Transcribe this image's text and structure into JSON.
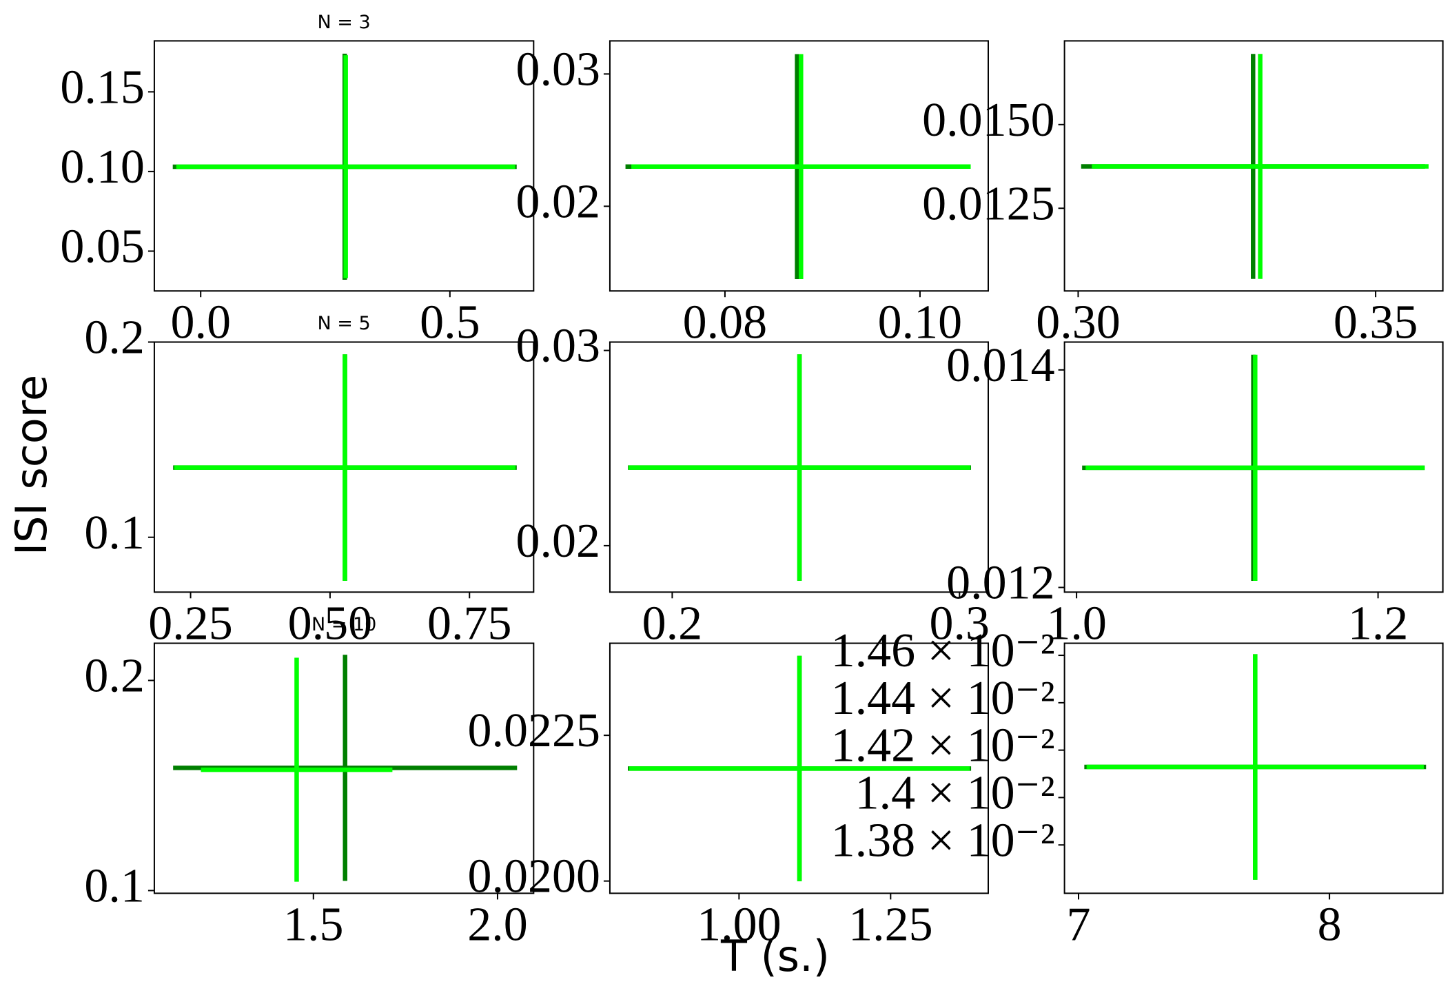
{
  "figure": {
    "xlabel": "T (s.)",
    "ylabel": "ISI score"
  },
  "chart_data": [
    {
      "type": "errorbar",
      "title": "N = 3",
      "xlim": [
        -0.093,
        0.668
      ],
      "ylim": [
        0.025,
        0.182
      ],
      "xticks": [
        {
          "value": 0,
          "label": "0.0"
        },
        0.5
      ],
      "yticks": [
        0.05,
        {
          "value": 0.1,
          "label": "0.10"
        },
        0.15
      ],
      "series": [
        {
          "color": "#007f00",
          "x": [
            0.289
          ],
          "values": [
            0.103
          ],
          "xerr": [
            0.345
          ],
          "yerr": [
            0.071
          ]
        },
        {
          "color": "#00ff00",
          "x": [
            0.291
          ],
          "values": [
            0.103
          ],
          "xerr": [
            0.34
          ],
          "yerr": [
            0.07
          ]
        }
      ]
    },
    {
      "type": "errorbar",
      "xlim": [
        0.0682,
        0.107
      ],
      "ylim": [
        0.0136,
        0.0325
      ],
      "xticks": [
        0.08,
        {
          "value": 0.1,
          "label": "0.10"
        }
      ],
      "yticks": [
        0.02,
        0.03
      ],
      "series": [
        {
          "color": "#007f00",
          "x": [
            0.0874
          ],
          "values": [
            0.023
          ],
          "xerr": [
            0.0176
          ],
          "yerr": [
            0.0085
          ]
        },
        {
          "color": "#00ff00",
          "x": [
            0.0878
          ],
          "values": [
            0.023
          ],
          "xerr": [
            0.0174
          ],
          "yerr": [
            0.0085
          ]
        }
      ]
    },
    {
      "type": "errorbar",
      "xlim": [
        0.2977,
        0.3613
      ],
      "ylim": [
        0.01003,
        0.0175
      ],
      "xticks": [
        {
          "value": 0.3,
          "label": "0.30"
        },
        0.35
      ],
      "yticks": [
        0.0125,
        {
          "value": 0.015,
          "label": "0.0150"
        }
      ],
      "series": [
        {
          "color": "#007f00",
          "x": [
            0.3294
          ],
          "values": [
            0.01375
          ],
          "xerr": [
            0.0289
          ],
          "yerr": [
            0.00336
          ]
        },
        {
          "color": "#00ff00",
          "x": [
            0.3306
          ],
          "values": [
            0.01375
          ],
          "xerr": [
            0.0283
          ],
          "yerr": [
            0.00336
          ]
        }
      ]
    },
    {
      "type": "errorbar",
      "title": "N = 5",
      "xlim": [
        0.185,
        0.865
      ],
      "ylim": [
        0.0719,
        0.2
      ],
      "xticks": [
        0.25,
        {
          "value": 0.5,
          "label": "0.50"
        },
        0.75
      ],
      "yticks": [
        0.1,
        0.2
      ],
      "series": [
        {
          "color": "#007f00",
          "x": [
            0.5267
          ],
          "values": [
            0.1357
          ],
          "xerr": [
            0.308
          ],
          "yerr": [
            0.058
          ]
        },
        {
          "color": "#00ff00",
          "x": [
            0.5267
          ],
          "values": [
            0.1357
          ],
          "xerr": [
            0.306
          ],
          "yerr": [
            0.058
          ]
        }
      ]
    },
    {
      "type": "errorbar",
      "xlim": [
        0.1783,
        0.31
      ],
      "ylim": [
        0.01762,
        0.03043
      ],
      "xticks": [
        0.2,
        0.3
      ],
      "yticks": [
        0.02,
        0.03
      ],
      "series": [
        {
          "color": "#007f00",
          "x": [
            0.2443
          ],
          "values": [
            0.024
          ],
          "xerr": [
            0.0597
          ],
          "yerr": [
            0.0058
          ]
        },
        {
          "color": "#00ff00",
          "x": [
            0.2443
          ],
          "values": [
            0.024
          ],
          "xerr": [
            0.0595
          ],
          "yerr": [
            0.0058
          ]
        }
      ]
    },
    {
      "type": "errorbar",
      "xlim": [
        0.992,
        1.243
      ],
      "ylim": [
        0.011957,
        0.014256
      ],
      "xticks": [
        {
          "value": 1,
          "label": "1.0"
        },
        1.2
      ],
      "yticks": [
        0.012,
        0.014
      ],
      "series": [
        {
          "color": "#007f00",
          "x": [
            1.1173
          ],
          "values": [
            0.0131
          ],
          "xerr": [
            0.1136
          ],
          "yerr": [
            0.00104
          ]
        },
        {
          "color": "#00ff00",
          "x": [
            1.1185
          ],
          "values": [
            0.0131
          ],
          "xerr": [
            0.1125
          ],
          "yerr": [
            0.00104
          ]
        }
      ]
    },
    {
      "type": "errorbar",
      "title": "N = 10",
      "xlim": [
        1.068,
        2.098
      ],
      "ylim": [
        0.0987,
        0.2177
      ],
      "xticks": [
        1.5,
        {
          "value": 2,
          "label": "2.0"
        }
      ],
      "yticks": [
        0.1,
        0.2
      ],
      "series": [
        {
          "color": "#007f00",
          "x": [
            1.586
          ],
          "values": [
            0.1584
          ],
          "xerr": [
            0.467
          ],
          "yerr": [
            0.0538
          ]
        },
        {
          "color": "#00ff00",
          "x": [
            1.4545
          ],
          "values": [
            0.1575
          ],
          "xerr": [
            0.26
          ],
          "yerr": [
            0.0533
          ]
        }
      ]
    },
    {
      "type": "errorbar",
      "xlim": [
        0.787,
        1.411
      ],
      "ylim": [
        0.01979,
        0.02408
      ],
      "xticks": [
        {
          "value": 1,
          "label": "1.00"
        },
        1.25
      ],
      "yticks": [
        {
          "value": 0.02,
          "label": "0.0200"
        },
        0.0225
      ],
      "series": [
        {
          "color": "#007f00",
          "x": [
            1.0997
          ],
          "values": [
            0.02193
          ],
          "xerr": [
            0.283
          ],
          "yerr": [
            0.001935
          ]
        },
        {
          "color": "#00ff00",
          "x": [
            1.0997
          ],
          "values": [
            0.02193
          ],
          "xerr": [
            0.281
          ],
          "yerr": [
            0.001935
          ]
        }
      ]
    },
    {
      "type": "errorbar",
      "xlim": [
        6.944,
        8.452
      ],
      "ylim": [
        0.013596,
        0.014651
      ],
      "xticks": [
        7,
        8
      ],
      "yticks": [
        {
          "value": 0.0138,
          "label": "1.38 × 10⁻²"
        },
        {
          "value": 0.014,
          "label": "1.4 × 10⁻²"
        },
        {
          "value": 0.0142,
          "label": "1.42 × 10⁻²"
        },
        {
          "value": 0.0144,
          "label": "1.44 × 10⁻²"
        },
        {
          "value": 0.0146,
          "label": "1.46 × 10⁻²"
        }
      ],
      "series": [
        {
          "color": "#007f00",
          "x": [
            7.704
          ],
          "values": [
            0.014129
          ],
          "xerr": [
            0.681
          ],
          "yerr": [
            0.000476
          ]
        },
        {
          "color": "#00ff00",
          "x": [
            7.704
          ],
          "values": [
            0.014129
          ],
          "xerr": [
            0.672
          ],
          "yerr": [
            0.000476
          ]
        }
      ]
    }
  ]
}
